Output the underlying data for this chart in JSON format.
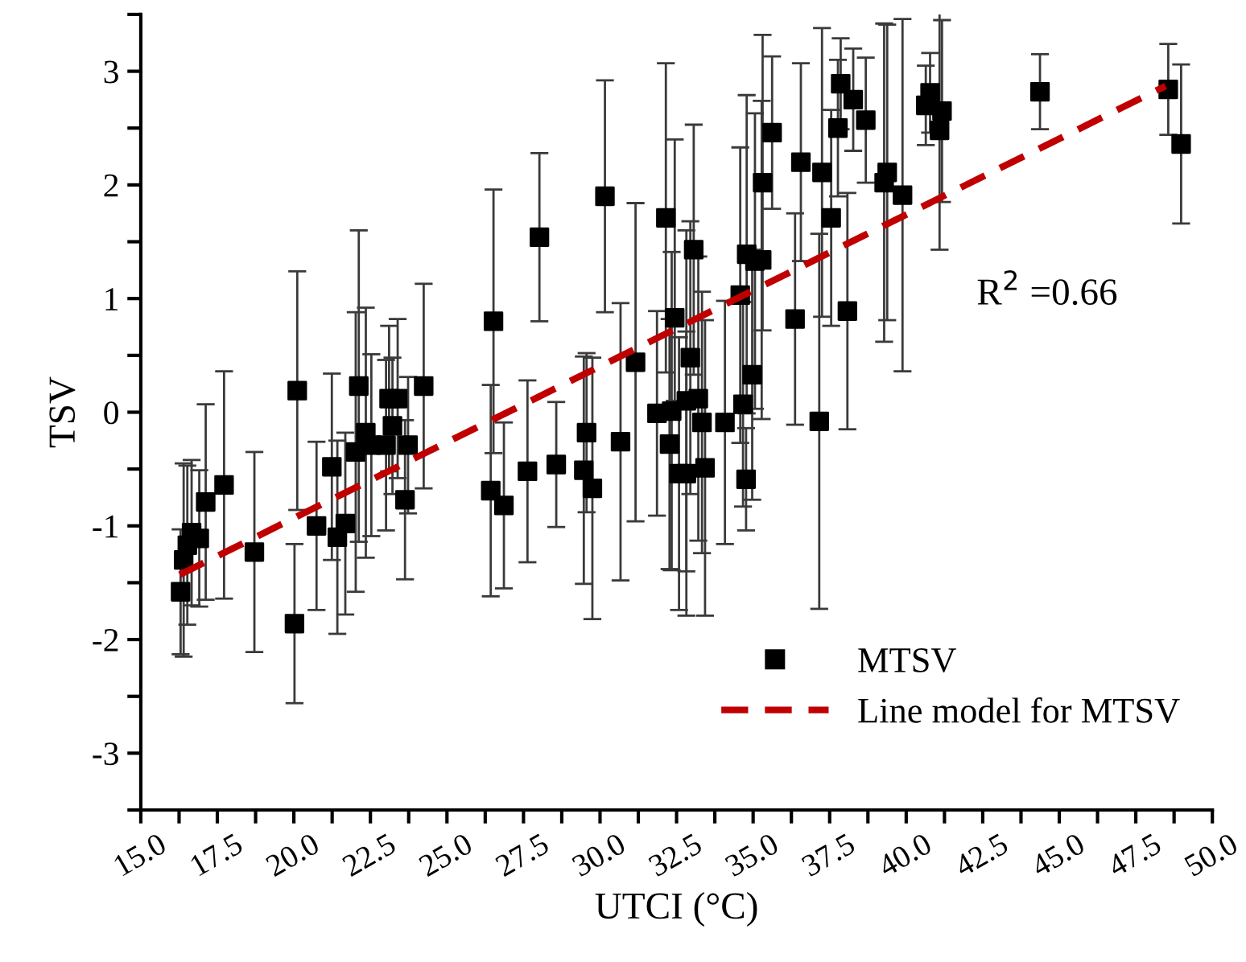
{
  "chart_data": {
    "type": "scatter",
    "xlabel": "UTCI (°C)",
    "ylabel": "TSV",
    "xlim": [
      15,
      50
    ],
    "ylim": [
      -3.5,
      3.5
    ],
    "xticks": [
      {
        "value": 15,
        "label": "15.0"
      },
      {
        "value": 16.25,
        "label": null
      },
      17.5,
      {
        "value": 18.75,
        "label": null
      },
      {
        "value": 20,
        "label": "20.0"
      },
      {
        "value": 21.25,
        "label": null
      },
      22.5,
      {
        "value": 23.75,
        "label": null
      },
      {
        "value": 25,
        "label": "25.0"
      },
      {
        "value": 26.25,
        "label": null
      },
      27.5,
      {
        "value": 28.75,
        "label": null
      },
      {
        "value": 30,
        "label": "30.0"
      },
      {
        "value": 31.25,
        "label": null
      },
      32.5,
      {
        "value": 33.75,
        "label": null
      },
      {
        "value": 35,
        "label": "35.0"
      },
      {
        "value": 36.25,
        "label": null
      },
      37.5,
      {
        "value": 38.75,
        "label": null
      },
      {
        "value": 40,
        "label": "40.0"
      },
      {
        "value": 41.25,
        "label": null
      },
      42.5,
      {
        "value": 43.75,
        "label": null
      },
      {
        "value": 45,
        "label": "45.0"
      },
      {
        "value": 46.25,
        "label": null
      },
      47.5,
      {
        "value": 48.75,
        "label": null
      },
      {
        "value": 50,
        "label": "50.0"
      }
    ],
    "yticks": [
      {
        "value": -3.5,
        "label": null
      },
      -3,
      {
        "value": -2.5,
        "label": null
      },
      -2,
      {
        "value": -1.5,
        "label": null
      },
      -1,
      {
        "value": -0.5,
        "label": null
      },
      0,
      {
        "value": 0.5,
        "label": null
      },
      1,
      {
        "value": 1.5,
        "label": null
      },
      2,
      {
        "value": 2.5,
        "label": null
      },
      3,
      {
        "value": 3.5,
        "label": null
      }
    ],
    "legend": "bottom right",
    "annotations": [
      "R$^{2}$ =0.66"
    ],
    "series": [
      {
        "name": "MTSV",
        "color": "#000000",
        "marker": "square",
        "x": [
          16.3,
          16.4,
          16.52,
          16.66,
          16.91,
          17.12,
          17.72,
          18.71,
          20.02,
          20.11,
          20.74,
          21.24,
          21.42,
          21.68,
          22.02,
          22.12,
          22.35,
          22.53,
          23.01,
          23.11,
          23.39,
          23.22,
          23.73,
          23.63,
          24.24,
          26.52,
          26.43,
          26.86,
          27.63,
          28.02,
          28.57,
          29.47,
          29.56,
          29.75,
          30.16,
          30.67,
          31.16,
          31.86,
          32.15,
          32.27,
          32.34,
          32.44,
          32.58,
          32.82,
          32.82,
          32.95,
          33.06,
          33.21,
          33.33,
          33.43,
          34.08,
          34.58,
          34.67,
          34.77,
          34.79,
          34.97,
          35.06,
          35.28,
          35.31,
          35.62,
          36.37,
          36.56,
          37.16,
          37.25,
          37.55,
          37.77,
          37.86,
          38.08,
          38.27,
          38.68,
          39.28,
          39.38,
          39.88,
          40.64,
          40.78,
          41.09,
          41.17,
          44.37,
          48.56,
          48.98
        ],
        "values": [
          -1.58,
          -1.3,
          -1.17,
          -1.06,
          -1.11,
          -0.79,
          -0.64,
          -1.23,
          -1.86,
          0.19,
          -1.0,
          -0.48,
          -1.1,
          -0.98,
          -0.35,
          0.23,
          -0.18,
          -0.29,
          -0.29,
          0.12,
          0.12,
          -0.12,
          -0.29,
          -0.77,
          0.23,
          0.8,
          -0.69,
          -0.82,
          -0.52,
          1.54,
          -0.46,
          -0.51,
          -0.18,
          -0.67,
          1.9,
          -0.26,
          0.44,
          -0.01,
          1.71,
          -0.28,
          0.01,
          0.83,
          -0.54,
          -0.54,
          0.1,
          0.48,
          1.43,
          0.12,
          -0.09,
          -0.49,
          -0.09,
          1.03,
          0.07,
          -0.59,
          1.39,
          0.33,
          1.33,
          1.34,
          2.02,
          2.46,
          0.82,
          2.2,
          -0.08,
          2.11,
          1.71,
          2.5,
          2.89,
          0.89,
          2.75,
          2.57,
          2.02,
          2.11,
          1.91,
          2.7,
          2.81,
          2.48,
          2.65,
          2.82,
          2.84,
          2.36
        ],
        "errors": [
          0.55,
          0.85,
          0.7,
          0.64,
          0.6,
          0.86,
          1.0,
          0.88,
          0.7,
          1.05,
          0.74,
          0.82,
          0.85,
          0.8,
          1.23,
          1.37,
          1.1,
          0.8,
          0.75,
          0.64,
          0.7,
          0.6,
          0.6,
          0.7,
          0.9,
          1.16,
          0.93,
          0.73,
          0.8,
          0.74,
          0.55,
          1.0,
          0.7,
          1.15,
          1.02,
          1.22,
          1.4,
          0.9,
          1.36,
          1.1,
          1.4,
          [
            0.1,
            2.4
          ],
          1.2,
          1.25,
          1.5,
          1.2,
          1.1,
          1.25,
          1.15,
          1.3,
          1.07,
          1.3,
          0.9,
          0.45,
          1.4,
          1.1,
          1.3,
          1.4,
          1.3,
          0.67,
          0.93,
          0.87,
          1.65,
          1.27,
          0.95,
          0.6,
          0.4,
          1.04,
          0.45,
          0.55,
          1.4,
          1.3,
          1.55,
          0.35,
          0.35,
          1.05,
          0.8,
          0.33,
          0.4,
          0.7
        ]
      },
      {
        "name": "Line model for MTSV",
        "type": "line",
        "color": "#c00000",
        "line_style": "dashed",
        "marker": "none",
        "x": [
          16.27,
          48.47
        ],
        "values": [
          -1.43,
          2.87
        ]
      }
    ]
  }
}
